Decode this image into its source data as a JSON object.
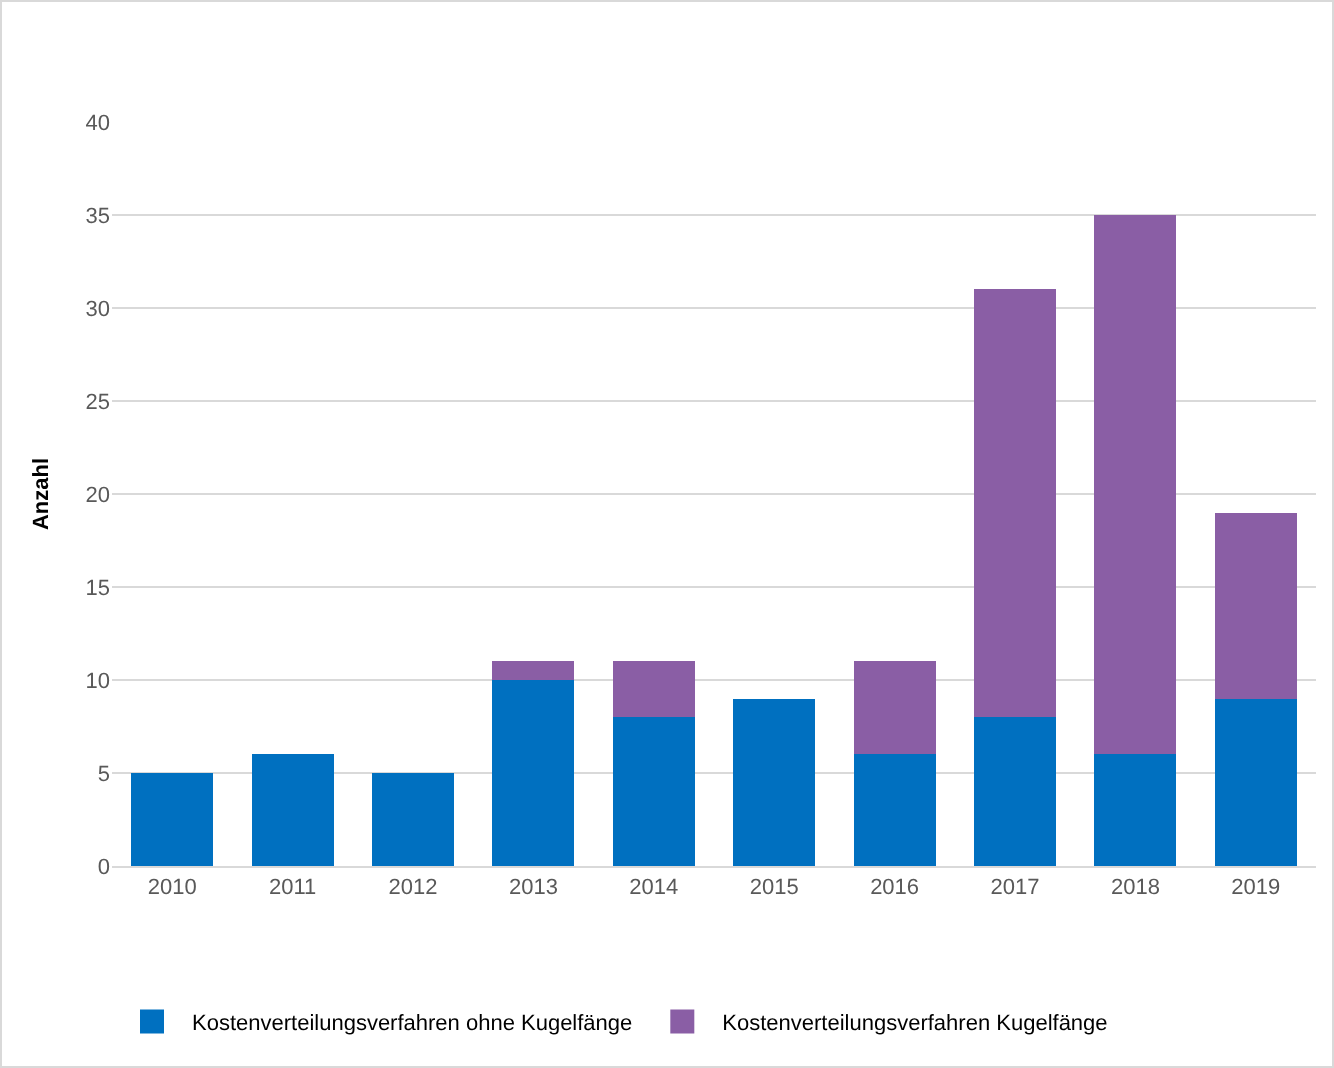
{
  "chart_data": {
    "type": "bar",
    "stacked": true,
    "ylabel": "Anzahl",
    "categories": [
      "2010",
      "2011",
      "2012",
      "2013",
      "2014",
      "2015",
      "2016",
      "2017",
      "2018",
      "2019"
    ],
    "series": [
      {
        "name": "Kostenverteilungsverfahren ohne Kugelfänge",
        "color": "#0070c0",
        "values": [
          5,
          6,
          5,
          10,
          8,
          9,
          6,
          8,
          6,
          9
        ]
      },
      {
        "name": "Kostenverteilungsverfahren Kugelfänge",
        "color": "#8a5ea5",
        "values": [
          0,
          0,
          0,
          1,
          3,
          0,
          5,
          23,
          29,
          10
        ]
      }
    ],
    "ylim": [
      0,
      40
    ],
    "yticks": [
      0,
      5,
      10,
      15,
      20,
      25,
      30,
      35,
      40
    ],
    "grid": "y",
    "legend": "bottom"
  }
}
